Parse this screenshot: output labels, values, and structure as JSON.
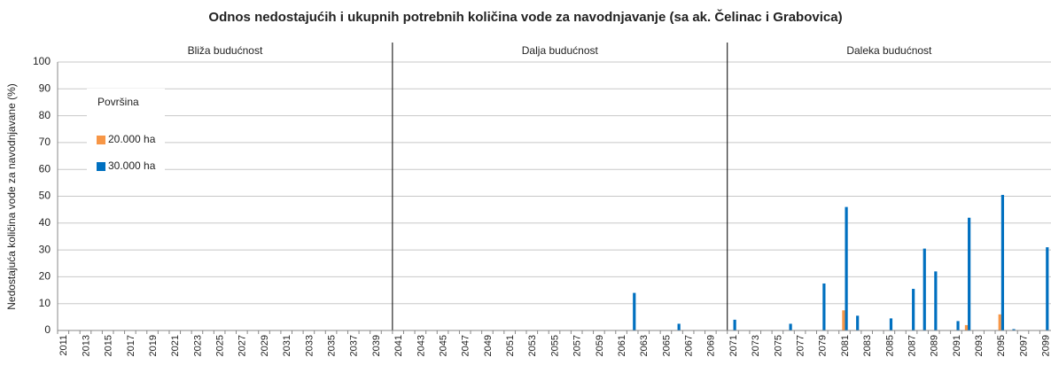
{
  "chart_data": {
    "type": "bar",
    "title": "Odnos nedostajućih i ukupnih potrebnih količina vode za navodnjavanje (sa ak. Čelinac i Grabovica)",
    "y_label": "Nedostajuća količina vode za navodnjavane (%)",
    "periods": [
      "Bliža budućnost",
      "Dalja budućnost",
      "Daleka budućnost"
    ],
    "legend_title": "Površina",
    "categories": [
      "2011",
      null,
      "2013",
      null,
      "2015",
      null,
      "2017",
      null,
      "2019",
      null,
      "2021",
      null,
      "2023",
      null,
      "2025",
      null,
      "2027",
      null,
      "2029",
      null,
      "2031",
      null,
      "2033",
      null,
      "2035",
      null,
      "2037",
      null,
      "2039",
      null,
      "2041",
      null,
      "2043",
      null,
      "2045",
      null,
      "2047",
      null,
      "2049",
      null,
      "2051",
      null,
      "2053",
      null,
      "2055",
      null,
      "2057",
      null,
      "2059",
      null,
      "2061",
      null,
      "2063",
      null,
      "2065",
      null,
      "2067",
      null,
      "2069",
      null,
      "2071",
      null,
      "2073",
      null,
      "2075",
      null,
      "2077",
      null,
      "2079",
      null,
      "2081",
      null,
      "2083",
      null,
      "2085",
      null,
      "2087",
      null,
      "2089",
      null,
      "2091",
      null,
      "2093",
      null,
      "2095",
      null,
      "2097",
      null,
      "2099"
    ],
    "series": [
      {
        "name": "20.000 ha",
        "color": "#f79646",
        "values": [
          0,
          0,
          0,
          0,
          0,
          0,
          0,
          0,
          0,
          0,
          0,
          0,
          0,
          0,
          0,
          0,
          0,
          0,
          0,
          0,
          0,
          0,
          0,
          0,
          0,
          0,
          0,
          0,
          0,
          0,
          0,
          0,
          0,
          0,
          0,
          0,
          0,
          0,
          0,
          0,
          0,
          0,
          0,
          0,
          0,
          0,
          0,
          0,
          0,
          0,
          0,
          0,
          0,
          0,
          0,
          0,
          0,
          0,
          0,
          0,
          0,
          0,
          0,
          0,
          0,
          0,
          0,
          0,
          0,
          0,
          7.5,
          0,
          0,
          0,
          0,
          0,
          0,
          0,
          0,
          0,
          0,
          2,
          0,
          0,
          6,
          0,
          0,
          0,
          0
        ]
      },
      {
        "name": "30.000 ha",
        "color": "#0070c0",
        "values": [
          0,
          0,
          0,
          0,
          0,
          0,
          0,
          0,
          0,
          0,
          0,
          0,
          0,
          0,
          0,
          0,
          0,
          0,
          0,
          0,
          0,
          0,
          0,
          0,
          0,
          0,
          0,
          0,
          0,
          0,
          0,
          0,
          0,
          0,
          0,
          0,
          0,
          0,
          0,
          0,
          0,
          0,
          0,
          0,
          0,
          0,
          0,
          0,
          0,
          0,
          0,
          14,
          0,
          0,
          0,
          2.5,
          0,
          0,
          0,
          0,
          4,
          0,
          0,
          0,
          0,
          2.5,
          0,
          0,
          17.5,
          0,
          46,
          5.5,
          0,
          0,
          4.5,
          0,
          15.5,
          30.5,
          22,
          0,
          3.5,
          42,
          0,
          0,
          50.5,
          0.5,
          0,
          0,
          31
        ]
      }
    ],
    "ylim": [
      0,
      100
    ],
    "yticks": [
      0,
      10,
      20,
      30,
      40,
      50,
      60,
      70,
      80,
      90,
      100
    ],
    "grid": true
  }
}
